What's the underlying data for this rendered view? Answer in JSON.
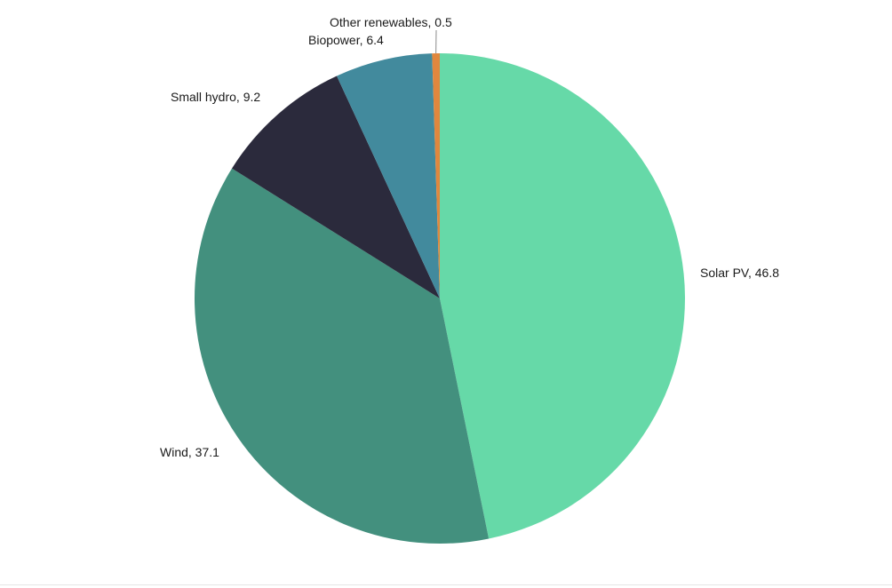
{
  "chart_data": {
    "type": "pie",
    "title": "",
    "start_angle_deg": 0,
    "direction": "clockwise",
    "legend": "none",
    "slices": [
      {
        "label": "Solar PV",
        "value": 46.8,
        "color": "#66d9a8",
        "display": "Solar PV, 46.8"
      },
      {
        "label": "Wind",
        "value": 37.1,
        "color": "#43907e",
        "display": "Wind, 37.1"
      },
      {
        "label": "Small hydro",
        "value": 9.2,
        "color": "#2b2a3c",
        "display": "Small hydro, 9.2"
      },
      {
        "label": "Biopower",
        "value": 6.4,
        "color": "#428a9d",
        "display": "Biopower, 6.4"
      },
      {
        "label": "Other renewables",
        "value": 0.5,
        "color": "#e0873e",
        "display": "Other renewables, 0.5"
      }
    ]
  }
}
